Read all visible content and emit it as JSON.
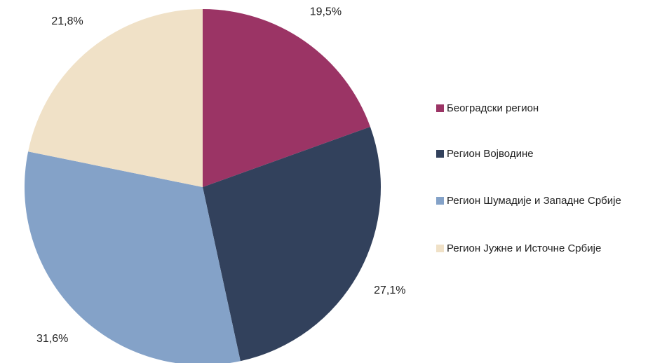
{
  "chart_data": {
    "type": "pie",
    "categories": [
      "Београдски регион",
      "Регион Војводине",
      "Регион Шумадије и Западне Србије",
      "Регион Јужне и Источне Србије"
    ],
    "values": [
      19.5,
      27.1,
      31.6,
      21.8
    ],
    "value_labels": [
      "19,5%",
      "27,1%",
      "31,6%",
      "21,8%"
    ],
    "colors": [
      "#9b3465",
      "#32415c",
      "#84a2c8",
      "#f0e1c7"
    ],
    "legend": "right"
  }
}
